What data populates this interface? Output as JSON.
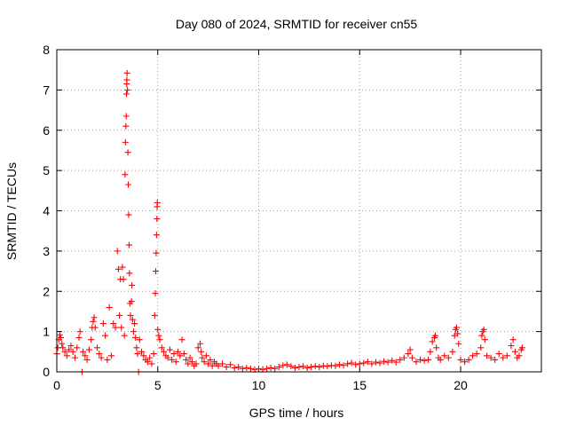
{
  "chart_data": {
    "type": "scatter",
    "title": "Day 080 of 2024, SRMTID for receiver cn55",
    "xlabel": "GPS time / hours",
    "ylabel": "SRMTID / TECUs",
    "xlim": [
      0,
      24
    ],
    "ylim": [
      0,
      8
    ],
    "xticks": [
      0,
      5,
      10,
      15,
      20
    ],
    "yticks": [
      0,
      1,
      2,
      3,
      4,
      5,
      6,
      7,
      8
    ],
    "xtick_labels": [
      "0",
      "5",
      "10",
      "15",
      "20"
    ],
    "ytick_labels": [
      "0",
      "1",
      "2",
      "3",
      "4",
      "5",
      "6",
      "7",
      "8"
    ],
    "grid": true,
    "marker": "+",
    "series": [
      {
        "name": "cn55",
        "color": "#ff0000",
        "points": [
          [
            0.0,
            0.45
          ],
          [
            0.05,
            0.6
          ],
          [
            0.1,
            0.8
          ],
          [
            0.15,
            0.92
          ],
          [
            0.2,
            0.85
          ],
          [
            0.25,
            0.7
          ],
          [
            0.3,
            0.6
          ],
          [
            0.4,
            0.5
          ],
          [
            0.5,
            0.4
          ],
          [
            0.6,
            0.55
          ],
          [
            0.7,
            0.65
          ],
          [
            0.8,
            0.5
          ],
          [
            0.9,
            0.35
          ],
          [
            1.0,
            0.6
          ],
          [
            1.1,
            0.85
          ],
          [
            1.15,
            1.0
          ],
          [
            1.25,
            0.0
          ],
          [
            1.3,
            0.5
          ],
          [
            1.4,
            0.4
          ],
          [
            1.5,
            0.3
          ],
          [
            1.6,
            0.55
          ],
          [
            1.7,
            0.8
          ],
          [
            1.75,
            1.1
          ],
          [
            1.8,
            1.25
          ],
          [
            1.85,
            1.35
          ],
          [
            1.9,
            1.1
          ],
          [
            2.0,
            0.6
          ],
          [
            2.1,
            0.45
          ],
          [
            2.2,
            0.35
          ],
          [
            2.3,
            1.2
          ],
          [
            2.4,
            0.9
          ],
          [
            2.5,
            0.3
          ],
          [
            2.6,
            1.6
          ],
          [
            2.7,
            0.4
          ],
          [
            2.8,
            1.2
          ],
          [
            2.9,
            1.1
          ],
          [
            3.0,
            3.0
          ],
          [
            3.05,
            2.55
          ],
          [
            3.1,
            1.4
          ],
          [
            3.15,
            2.3
          ],
          [
            3.2,
            1.1
          ],
          [
            3.25,
            2.6
          ],
          [
            3.3,
            2.3
          ],
          [
            3.35,
            0.9
          ],
          [
            3.38,
            4.9
          ],
          [
            3.4,
            5.7
          ],
          [
            3.42,
            6.1
          ],
          [
            3.44,
            6.35
          ],
          [
            3.45,
            6.9
          ],
          [
            3.46,
            7.15
          ],
          [
            3.47,
            7.25
          ],
          [
            3.48,
            7.42
          ],
          [
            3.5,
            7.0
          ],
          [
            3.52,
            5.45
          ],
          [
            3.54,
            4.65
          ],
          [
            3.56,
            3.9
          ],
          [
            3.58,
            3.15
          ],
          [
            3.6,
            2.45
          ],
          [
            3.62,
            1.7
          ],
          [
            3.65,
            1.4
          ],
          [
            3.7,
            1.75
          ],
          [
            3.72,
            2.15
          ],
          [
            3.75,
            1.3
          ],
          [
            3.8,
            1.0
          ],
          [
            3.85,
            1.2
          ],
          [
            3.9,
            0.85
          ],
          [
            3.95,
            0.6
          ],
          [
            4.0,
            0.45
          ],
          [
            4.05,
            0.0
          ],
          [
            4.1,
            0.8
          ],
          [
            4.2,
            0.5
          ],
          [
            4.3,
            0.4
          ],
          [
            4.4,
            0.3
          ],
          [
            4.5,
            0.25
          ],
          [
            4.6,
            0.35
          ],
          [
            4.7,
            0.2
          ],
          [
            4.8,
            0.45
          ],
          [
            4.85,
            1.4
          ],
          [
            4.88,
            1.95
          ],
          [
            4.9,
            2.5
          ],
          [
            4.92,
            2.95
          ],
          [
            4.94,
            3.4
          ],
          [
            4.96,
            3.8
          ],
          [
            4.97,
            4.1
          ],
          [
            4.98,
            4.2
          ],
          [
            5.0,
            1.05
          ],
          [
            5.05,
            0.9
          ],
          [
            5.1,
            0.8
          ],
          [
            5.2,
            0.6
          ],
          [
            5.3,
            0.5
          ],
          [
            5.4,
            0.4
          ],
          [
            5.5,
            0.35
          ],
          [
            5.6,
            0.55
          ],
          [
            5.7,
            0.3
          ],
          [
            5.8,
            0.45
          ],
          [
            5.9,
            0.25
          ],
          [
            6.0,
            0.5
          ],
          [
            6.1,
            0.4
          ],
          [
            6.2,
            0.8
          ],
          [
            6.3,
            0.45
          ],
          [
            6.4,
            0.3
          ],
          [
            6.5,
            0.2
          ],
          [
            6.6,
            0.35
          ],
          [
            6.7,
            0.25
          ],
          [
            6.8,
            0.15
          ],
          [
            6.9,
            0.2
          ],
          [
            7.0,
            0.6
          ],
          [
            7.1,
            0.7
          ],
          [
            7.15,
            0.5
          ],
          [
            7.2,
            0.35
          ],
          [
            7.3,
            0.25
          ],
          [
            7.4,
            0.4
          ],
          [
            7.5,
            0.2
          ],
          [
            7.6,
            0.3
          ],
          [
            7.7,
            0.15
          ],
          [
            7.8,
            0.25
          ],
          [
            7.9,
            0.2
          ],
          [
            8.0,
            0.15
          ],
          [
            8.2,
            0.2
          ],
          [
            8.4,
            0.12
          ],
          [
            8.6,
            0.18
          ],
          [
            8.8,
            0.1
          ],
          [
            9.0,
            0.12
          ],
          [
            9.2,
            0.08
          ],
          [
            9.4,
            0.1
          ],
          [
            9.6,
            0.08
          ],
          [
            9.8,
            0.06
          ],
          [
            10.0,
            0.08
          ],
          [
            10.2,
            0.06
          ],
          [
            10.4,
            0.08
          ],
          [
            10.6,
            0.1
          ],
          [
            10.8,
            0.08
          ],
          [
            11.0,
            0.12
          ],
          [
            11.2,
            0.16
          ],
          [
            11.4,
            0.18
          ],
          [
            11.6,
            0.14
          ],
          [
            11.8,
            0.1
          ],
          [
            12.0,
            0.12
          ],
          [
            12.2,
            0.14
          ],
          [
            12.4,
            0.1
          ],
          [
            12.6,
            0.12
          ],
          [
            12.8,
            0.14
          ],
          [
            13.0,
            0.12
          ],
          [
            13.2,
            0.15
          ],
          [
            13.4,
            0.14
          ],
          [
            13.6,
            0.16
          ],
          [
            13.8,
            0.15
          ],
          [
            14.0,
            0.18
          ],
          [
            14.2,
            0.16
          ],
          [
            14.4,
            0.2
          ],
          [
            14.6,
            0.22
          ],
          [
            14.8,
            0.18
          ],
          [
            15.0,
            0.2
          ],
          [
            15.2,
            0.22
          ],
          [
            15.4,
            0.25
          ],
          [
            15.6,
            0.2
          ],
          [
            15.8,
            0.24
          ],
          [
            16.0,
            0.22
          ],
          [
            16.2,
            0.26
          ],
          [
            16.4,
            0.24
          ],
          [
            16.6,
            0.28
          ],
          [
            16.8,
            0.24
          ],
          [
            17.0,
            0.3
          ],
          [
            17.2,
            0.35
          ],
          [
            17.4,
            0.45
          ],
          [
            17.5,
            0.55
          ],
          [
            17.6,
            0.35
          ],
          [
            17.8,
            0.25
          ],
          [
            18.0,
            0.3
          ],
          [
            18.2,
            0.28
          ],
          [
            18.4,
            0.3
          ],
          [
            18.5,
            0.5
          ],
          [
            18.6,
            0.75
          ],
          [
            18.7,
            0.85
          ],
          [
            18.75,
            0.9
          ],
          [
            18.8,
            0.6
          ],
          [
            18.9,
            0.35
          ],
          [
            19.0,
            0.3
          ],
          [
            19.2,
            0.4
          ],
          [
            19.4,
            0.35
          ],
          [
            19.6,
            0.5
          ],
          [
            19.7,
            0.9
          ],
          [
            19.75,
            1.05
          ],
          [
            19.8,
            1.1
          ],
          [
            19.85,
            0.95
          ],
          [
            19.9,
            0.7
          ],
          [
            20.0,
            0.3
          ],
          [
            20.2,
            0.25
          ],
          [
            20.4,
            0.3
          ],
          [
            20.6,
            0.4
          ],
          [
            20.8,
            0.45
          ],
          [
            21.0,
            0.6
          ],
          [
            21.05,
            0.9
          ],
          [
            21.1,
            1.0
          ],
          [
            21.15,
            1.05
          ],
          [
            21.2,
            0.8
          ],
          [
            21.3,
            0.4
          ],
          [
            21.5,
            0.35
          ],
          [
            21.7,
            0.3
          ],
          [
            21.9,
            0.45
          ],
          [
            22.1,
            0.35
          ],
          [
            22.3,
            0.4
          ],
          [
            22.5,
            0.65
          ],
          [
            22.6,
            0.8
          ],
          [
            22.7,
            0.5
          ],
          [
            22.8,
            0.35
          ],
          [
            22.9,
            0.4
          ],
          [
            23.0,
            0.55
          ],
          [
            23.05,
            0.6
          ]
        ]
      }
    ]
  }
}
